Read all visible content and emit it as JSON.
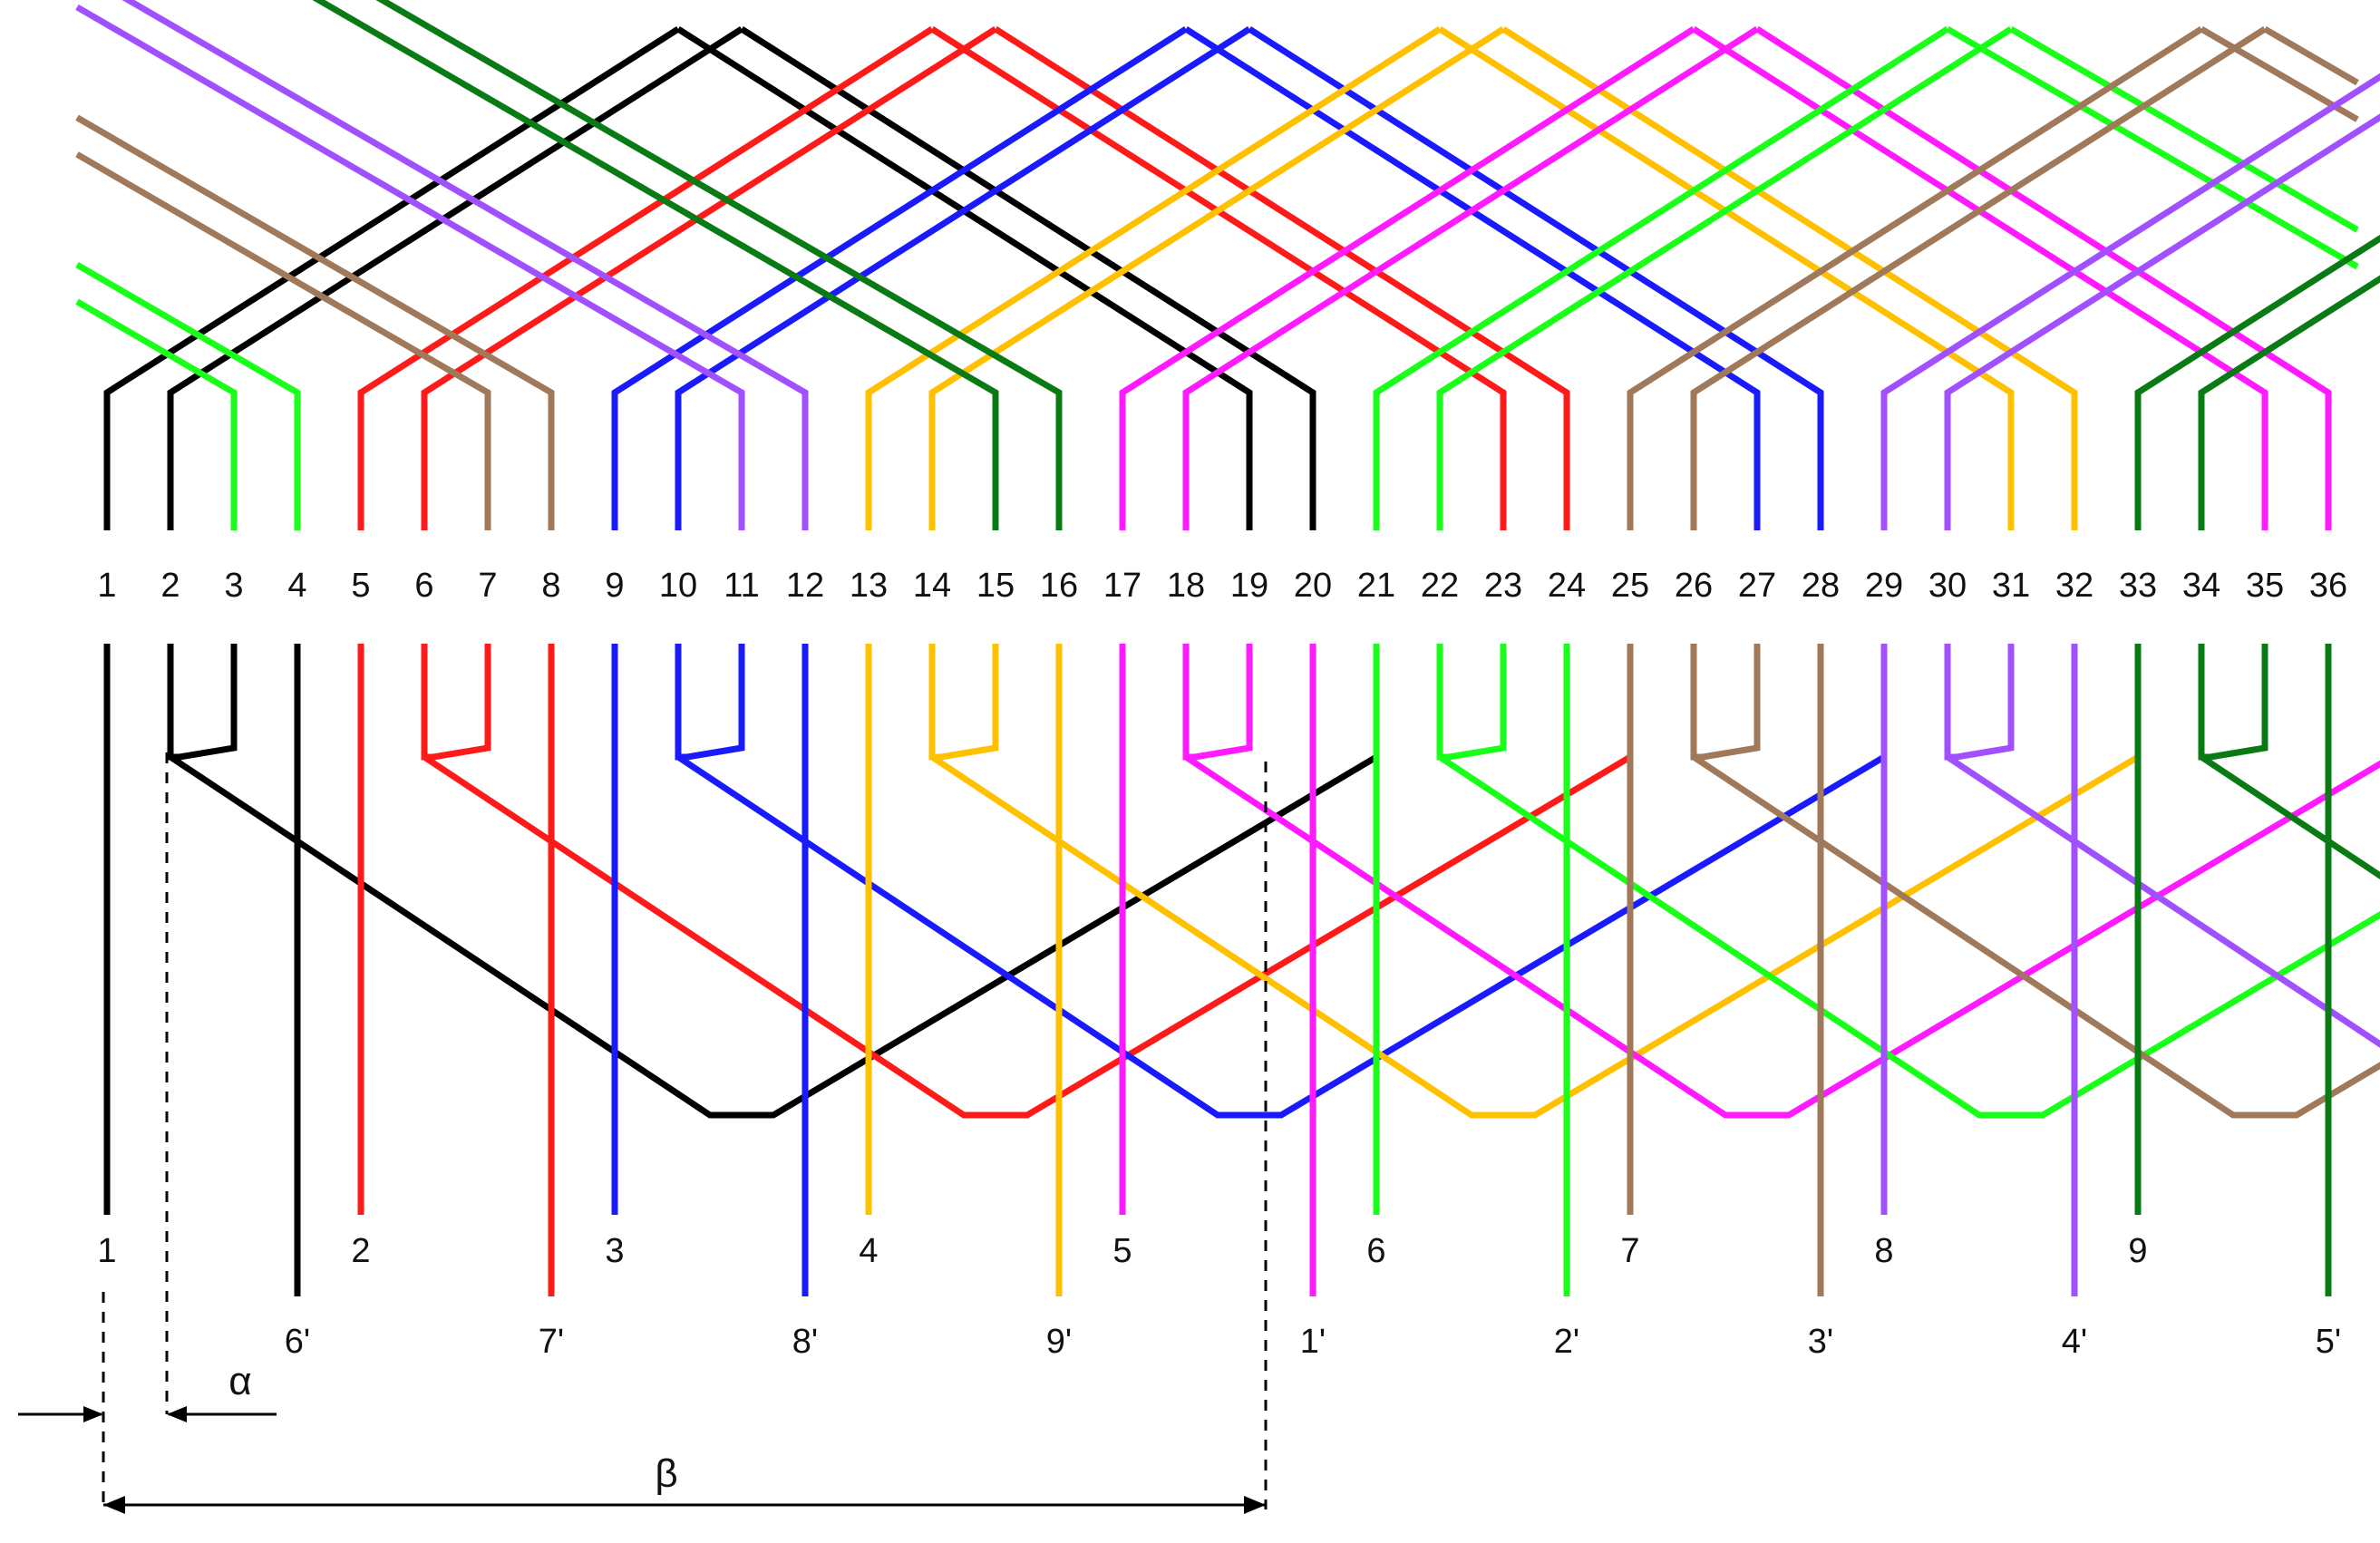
{
  "slot_labels": [
    "1",
    "2",
    "3",
    "4",
    "5",
    "6",
    "7",
    "8",
    "9",
    "10",
    "11",
    "12",
    "13",
    "14",
    "15",
    "16",
    "17",
    "18",
    "19",
    "20",
    "21",
    "22",
    "23",
    "24",
    "25",
    "26",
    "27",
    "28",
    "29",
    "30",
    "31",
    "32",
    "33",
    "34",
    "35",
    "36"
  ],
  "coil_colors": [
    "#000000",
    "#ff1a1a",
    "#1a1aff",
    "#ffc000",
    "#ff1aff",
    "#1aff1a",
    "#a0785a",
    "#a050ff",
    "#0a7a14"
  ],
  "start_leads": [
    "1",
    "2",
    "3",
    "4",
    "5",
    "6",
    "7",
    "8",
    "9"
  ],
  "end_leads": [
    "6'",
    "7'",
    "8'",
    "9'",
    "1'",
    "2'",
    "3'",
    "4'",
    "5'"
  ],
  "dimension": {
    "alpha_label": "α",
    "beta_label": "β"
  }
}
